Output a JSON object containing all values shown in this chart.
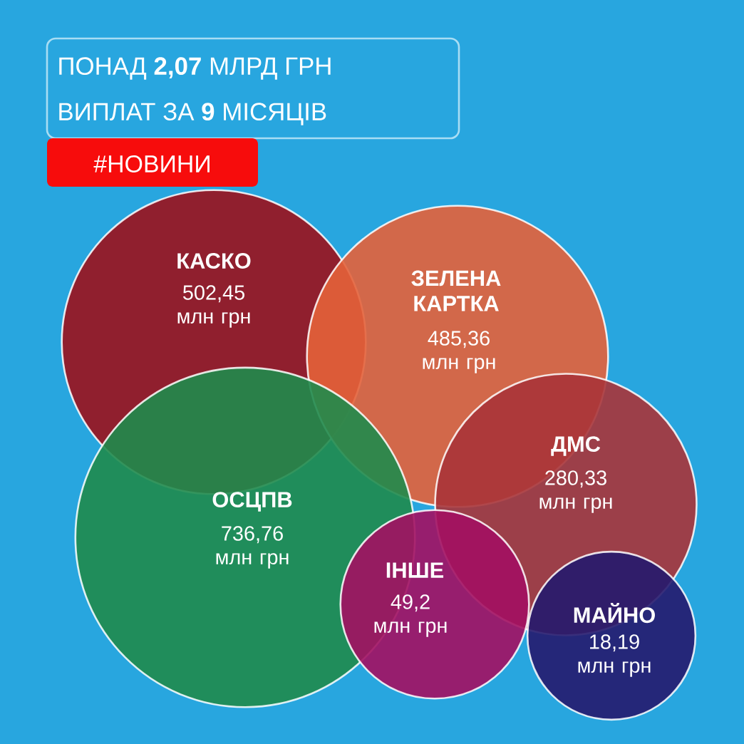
{
  "chart_data": {
    "type": "other",
    "title": "ПОНАД **2,07** МЛРД ГРН",
    "subtitle": "ВИПЛАТ ЗА **9** МІСЯЦІВ",
    "annotations": [
      "#НОВИНИ"
    ],
    "categories": [
      "КАСКО",
      "ЗЕЛЕНА КАРТКА",
      "ОСЦПВ",
      "ДМС",
      "ІНШЕ",
      "МАЙНО"
    ],
    "values": [
      502.45,
      485.36,
      736.76,
      280.33,
      49.2,
      18.19
    ],
    "value_labels": [
      "502,45 млн грн",
      "485,36 млн грн",
      "736,76 млн грн",
      "280,33 млн грн",
      "49,2 млн грн",
      "18,19 млн грн"
    ],
    "colors": [
      "#9b111b",
      "#e4623a",
      "#1f8b4c",
      "#a83438",
      "#a31062",
      "#25196e"
    ]
  }
}
